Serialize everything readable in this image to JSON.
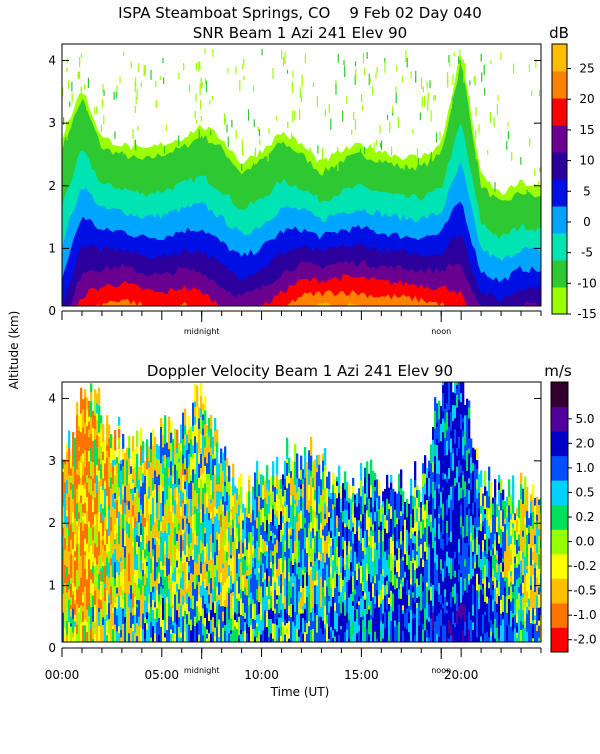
{
  "header": {
    "line1": "ISPA Steamboat Springs, CO    9 Feb 02 Day 040"
  },
  "y_axis_label": "Altitude (km)",
  "x_axis_label": "Time (UT)",
  "colors": {
    "snr_scale": [
      "#9bff00",
      "#2ec832",
      "#00e4b4",
      "#00a5ff",
      "#0010e5",
      "#2c009c",
      "#6a0090",
      "#ff0000",
      "#ff8200",
      "#ffbd00"
    ],
    "velocity_scale": [
      "#ff0000",
      "#ff7300",
      "#ffc000",
      "#ffff00",
      "#96ff00",
      "#00e05a",
      "#00d2ff",
      "#0050ff",
      "#0000c8",
      "#50009c",
      "#32002e"
    ]
  },
  "chart_data": [
    {
      "type": "heatmap",
      "title": "SNR Beam 1 Azi 241 Elev 90",
      "unit": "dB",
      "ylabel": "Altitude (km)",
      "ylim": [
        0,
        4.2
      ],
      "yticks": [
        "0",
        "1",
        "2",
        "3",
        "4"
      ],
      "colorbar_ticks": [
        "25",
        "20",
        "15",
        "10",
        "5",
        "0",
        "-5",
        "-10",
        "-15"
      ],
      "colorbar_range": [
        -15,
        29
      ],
      "xlim_hours": [
        0,
        24
      ],
      "x_markers": [
        {
          "label": "midnight",
          "hour": 7
        },
        {
          "label": "noon",
          "hour": 19
        }
      ],
      "time_hours": [
        0,
        1,
        2,
        3,
        4,
        5,
        6,
        7,
        8,
        9,
        10,
        11,
        12,
        13,
        14,
        15,
        16,
        17,
        18,
        19,
        20,
        21,
        22,
        23,
        24
      ],
      "echo_top_km": [
        2.6,
        3.4,
        2.6,
        2.5,
        2.4,
        2.5,
        2.6,
        2.8,
        2.6,
        2.2,
        2.4,
        2.7,
        2.5,
        2.2,
        2.4,
        2.5,
        2.4,
        2.3,
        2.3,
        2.5,
        4.0,
        2.0,
        1.7,
        1.9,
        1.8
      ],
      "near_surface_snr_db": [
        5,
        18,
        22,
        24,
        22,
        20,
        22,
        20,
        16,
        14,
        16,
        20,
        25,
        27,
        27,
        26,
        25,
        25,
        24,
        22,
        18,
        10,
        8,
        12,
        12
      ]
    },
    {
      "type": "heatmap",
      "title": "Doppler Velocity Beam 1 Azi 241 Elev 90",
      "unit": "m/s",
      "ylabel": "Altitude (km)",
      "ylim": [
        0,
        4.2
      ],
      "yticks": [
        "0",
        "1",
        "2",
        "3",
        "4"
      ],
      "colorbar_ticks": [
        "5.0",
        "2.0",
        "1.0",
        "0.5",
        "0.2",
        "0.0",
        "-0.2",
        "-0.5",
        "-1.0",
        "-2.0"
      ],
      "xlim_hours": [
        0,
        24
      ],
      "xticks": [
        "00:00",
        "05:00",
        "10:00",
        "15:00",
        "20:00"
      ],
      "xtick_hours": [
        0,
        5,
        10,
        15,
        20
      ],
      "x_markers": [
        {
          "label": "midnight",
          "hour": 7
        },
        {
          "label": "noon",
          "hour": 19
        }
      ],
      "xlabel": "Time (UT)",
      "time_hours": [
        0,
        1,
        2,
        3,
        4,
        5,
        6,
        7,
        8,
        9,
        10,
        11,
        12,
        13,
        14,
        15,
        16,
        17,
        18,
        19,
        20,
        21,
        22,
        23,
        24
      ],
      "mean_velocity_ms": [
        -0.5,
        -1.0,
        -0.5,
        -0.2,
        -0.2,
        0.0,
        -0.2,
        0.0,
        -0.2,
        0.0,
        0.2,
        0.2,
        0.2,
        0.0,
        0.5,
        0.5,
        0.5,
        0.5,
        0.5,
        1.0,
        1.0,
        0.5,
        0.2,
        0.0,
        -0.2
      ]
    }
  ]
}
